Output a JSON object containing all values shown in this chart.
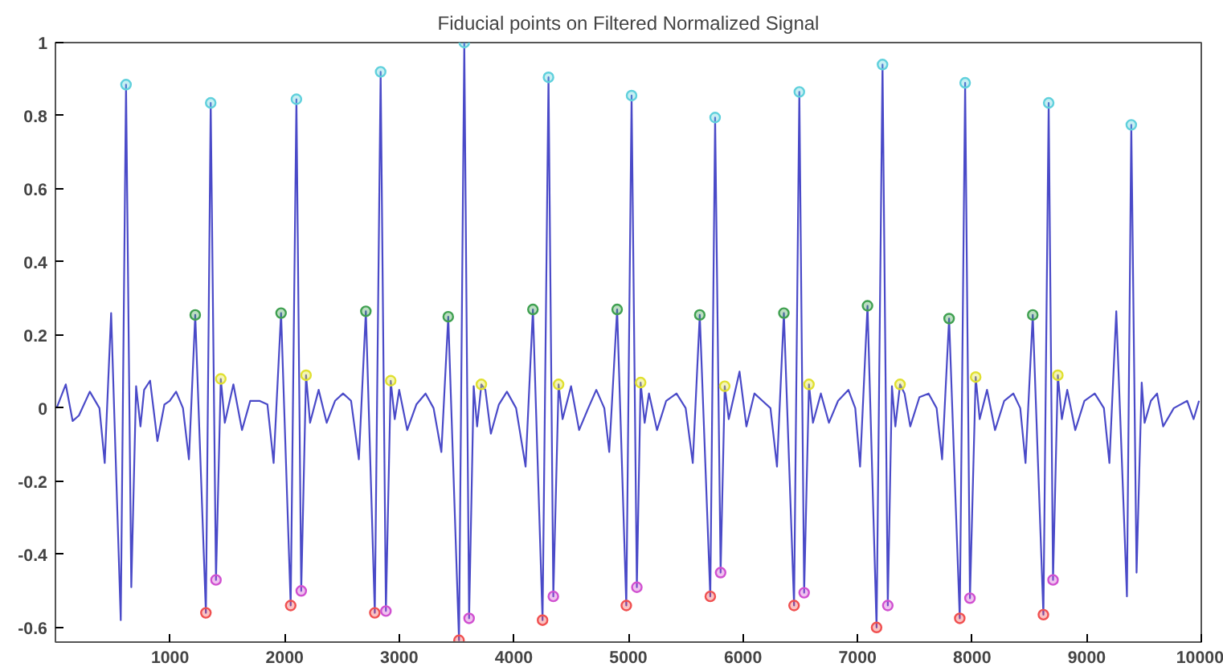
{
  "chart_data": {
    "type": "line",
    "title": "Fiducial points on Filtered Normalized Signal",
    "xlim": [
      0,
      10000
    ],
    "ylim": [
      -0.64,
      1
    ],
    "xticks": [
      1000,
      2000,
      3000,
      4000,
      5000,
      6000,
      7000,
      8000,
      9000,
      10000
    ],
    "yticks": [
      -0.6,
      -0.4,
      -0.2,
      0,
      0.2,
      0.4,
      0.6,
      0.8,
      1
    ],
    "grid": false,
    "line_style": "solid",
    "marker": "none",
    "series": [
      {
        "color": "#4a4ac8",
        "x": [
          10,
          90,
          150,
          205,
          300,
          384,
          430,
          486,
          570,
          616,
          662,
          704,
          742,
          774,
          826,
          890,
          951,
          997,
          1053,
          1113,
          1165,
          1220,
          1313,
          1355,
          1401,
          1443,
          1478,
          1553,
          1628,
          1700,
          1780,
          1850,
          1904,
          1969,
          2053,
          2103,
          2145,
          2187,
          2222,
          2297,
          2367,
          2440,
          2510,
          2580,
          2648,
          2709,
          2787,
          2838,
          2884,
          2926,
          2961,
          3000,
          3070,
          3150,
          3230,
          3300,
          3368,
          3428,
          3522,
          3568,
          3610,
          3650,
          3680,
          3717,
          3752,
          3800,
          3870,
          3940,
          4020,
          4103,
          4167,
          4251,
          4303,
          4345,
          4391,
          4426,
          4500,
          4570,
          4650,
          4720,
          4790,
          4833,
          4902,
          4982,
          5028,
          5074,
          5107,
          5142,
          5180,
          5250,
          5330,
          5420,
          5500,
          5562,
          5623,
          5715,
          5757,
          5805,
          5841,
          5876,
          5970,
          6030,
          6100,
          6170,
          6240,
          6297,
          6357,
          6446,
          6492,
          6534,
          6576,
          6611,
          6680,
          6750,
          6830,
          6920,
          6980,
          7022,
          7087,
          7166,
          7218,
          7264,
          7300,
          7330,
          7371,
          7410,
          7460,
          7540,
          7620,
          7690,
          7738,
          7799,
          7892,
          7939,
          7981,
          8031,
          8066,
          8130,
          8200,
          8280,
          8360,
          8420,
          8466,
          8529,
          8622,
          8668,
          8706,
          8748,
          8783,
          8830,
          8900,
          8980,
          9070,
          9150,
          9198,
          9258,
          9351,
          9389,
          9435,
          9480,
          9505,
          9560,
          9614,
          9667,
          9760,
          9877,
          9933,
          9980
        ],
        "values": [
          0,
          0.065,
          -0.035,
          -0.02,
          0.045,
          0,
          -0.15,
          0.26,
          -0.58,
          0.885,
          -0.49,
          0.06,
          -0.05,
          0.05,
          0.075,
          -0.09,
          0.01,
          0.02,
          0.045,
          0,
          -0.14,
          0.255,
          -0.56,
          0.835,
          -0.47,
          0.08,
          -0.04,
          0.065,
          -0.06,
          0.02,
          0.02,
          0.01,
          -0.15,
          0.26,
          -0.54,
          0.845,
          -0.5,
          0.09,
          -0.04,
          0.05,
          -0.04,
          0.02,
          0.04,
          0.02,
          -0.14,
          0.265,
          -0.56,
          0.92,
          -0.555,
          0.075,
          -0.03,
          0.05,
          -0.06,
          0.01,
          0.04,
          0,
          -0.12,
          0.25,
          -0.635,
          1.0,
          -0.575,
          0.06,
          -0.05,
          0.065,
          0.05,
          -0.07,
          0.01,
          0.045,
          0,
          -0.16,
          0.27,
          -0.58,
          0.905,
          -0.515,
          0.065,
          -0.03,
          0.06,
          -0.06,
          0,
          0.05,
          0,
          -0.12,
          0.27,
          -0.54,
          0.855,
          -0.49,
          0.07,
          -0.04,
          0.04,
          -0.06,
          0.02,
          0.04,
          0,
          -0.15,
          0.255,
          -0.515,
          0.795,
          -0.45,
          0.06,
          -0.03,
          0.1,
          -0.05,
          0.04,
          0.02,
          0,
          -0.16,
          0.26,
          -0.54,
          0.865,
          -0.505,
          0.065,
          -0.04,
          0.04,
          -0.04,
          0.02,
          0.05,
          0,
          -0.16,
          0.28,
          -0.6,
          0.94,
          -0.54,
          0.06,
          -0.05,
          0.065,
          0.04,
          -0.05,
          0.03,
          0.04,
          0,
          -0.14,
          0.245,
          -0.575,
          0.89,
          -0.52,
          0.085,
          -0.03,
          0.05,
          -0.06,
          0.02,
          0.04,
          0,
          -0.15,
          0.255,
          -0.565,
          0.835,
          -0.47,
          0.09,
          -0.03,
          0.05,
          -0.06,
          0.02,
          0.04,
          0,
          -0.15,
          0.265,
          -0.515,
          0.775,
          -0.45,
          0.07,
          -0.04,
          0.02,
          0.04,
          -0.05,
          0,
          0.02,
          -0.03,
          0.02
        ]
      },
      {
        "type": "scatter",
        "marker": "circle",
        "color": "#5fd0dc",
        "x": [
          616,
          1355,
          2103,
          2838,
          3568,
          4303,
          5028,
          5757,
          6492,
          7218,
          7939,
          8668,
          9389
        ],
        "values": [
          0.885,
          0.835,
          0.845,
          0.92,
          1.0,
          0.905,
          0.855,
          0.795,
          0.865,
          0.94,
          0.89,
          0.835,
          0.775
        ]
      },
      {
        "type": "scatter",
        "marker": "circle",
        "color": "#3fa050",
        "x": [
          1220,
          1969,
          2709,
          3428,
          4167,
          4902,
          5623,
          6357,
          7087,
          7799,
          8529
        ],
        "values": [
          0.255,
          0.26,
          0.265,
          0.25,
          0.27,
          0.27,
          0.255,
          0.26,
          0.28,
          0.245,
          0.255
        ]
      },
      {
        "type": "scatter",
        "marker": "circle",
        "color": "#f05050",
        "x": [
          1313,
          2053,
          2787,
          3522,
          4251,
          4982,
          5715,
          6446,
          7166,
          7892,
          8622
        ],
        "values": [
          -0.56,
          -0.54,
          -0.56,
          -0.635,
          -0.58,
          -0.54,
          -0.515,
          -0.54,
          -0.6,
          -0.575,
          -0.565
        ]
      },
      {
        "type": "scatter",
        "marker": "circle",
        "color": "#d050d0",
        "x": [
          1401,
          2145,
          2884,
          3610,
          4345,
          5074,
          5805,
          6534,
          7264,
          7981,
          8706
        ],
        "values": [
          -0.47,
          -0.5,
          -0.555,
          -0.575,
          -0.515,
          -0.49,
          -0.45,
          -0.505,
          -0.54,
          -0.52,
          -0.47
        ]
      },
      {
        "type": "scatter",
        "marker": "circle",
        "color": "#e0e030",
        "x": [
          1443,
          2187,
          2926,
          3717,
          4391,
          5107,
          5841,
          6576,
          7371,
          8031,
          8748
        ],
        "values": [
          0.08,
          0.09,
          0.075,
          0.065,
          0.065,
          0.07,
          0.06,
          0.065,
          0.065,
          0.085,
          0.09
        ]
      }
    ]
  }
}
